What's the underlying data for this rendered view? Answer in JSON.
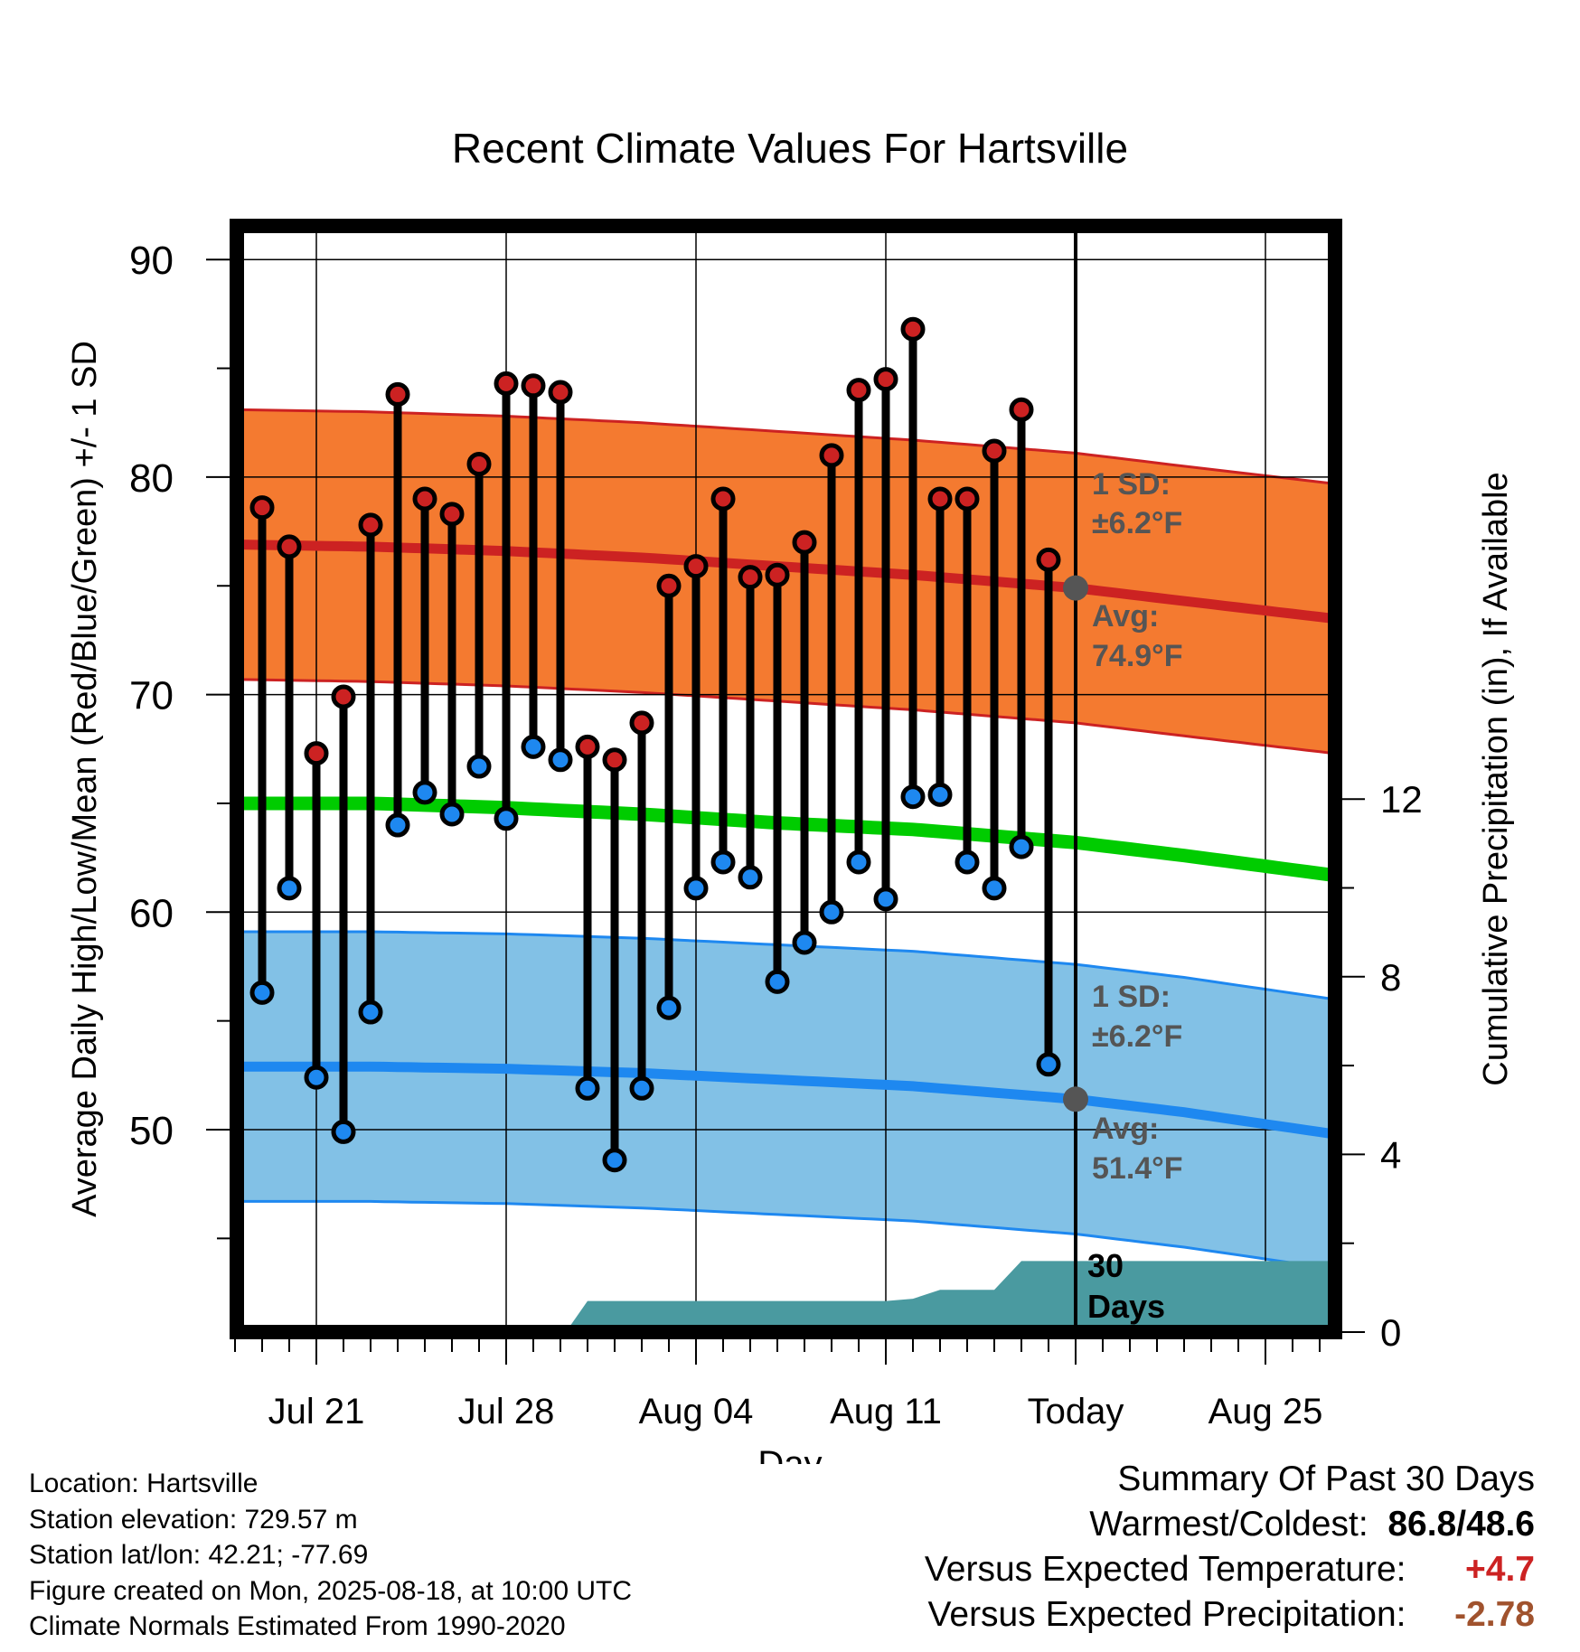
{
  "chart_data": {
    "type": "line",
    "title": "Recent Climate Values For Hartsville",
    "xlabel": "Day",
    "ylabel": "Average Daily High/Low/Mean (Red/Blue/Green) +/- 1 SD",
    "y2label": "Cumulative Precipitation (in), If Available",
    "ylim": [
      40,
      92
    ],
    "y2lim": [
      0,
      24
    ],
    "y_ticks": [
      50,
      60,
      70,
      80,
      90
    ],
    "y2_ticks": [
      0,
      4,
      8,
      12
    ],
    "x_tick_labels": [
      "Jul 21",
      "Jul 28",
      "Aug 04",
      "Aug 11",
      "Today",
      "Aug 25"
    ],
    "x_tick_days": [
      3,
      10,
      17,
      24,
      31,
      38
    ],
    "x_range_days": [
      0,
      40.5
    ],
    "grid": true,
    "colors": {
      "high": "#cc2222",
      "high_band": "#f47a30",
      "low": "#1e88f0",
      "low_band": "#82c1e6",
      "mean": "#00cc00",
      "precip": "#4a9aa0",
      "today_marker": "#555555",
      "annotation": "#555555"
    },
    "normals": {
      "days": [
        0,
        5,
        10,
        15,
        20,
        25,
        31,
        35,
        40.5
      ],
      "avg_high": [
        76.9,
        76.8,
        76.6,
        76.3,
        75.9,
        75.5,
        74.9,
        74.3,
        73.5
      ],
      "avg_low": [
        52.9,
        52.9,
        52.8,
        52.6,
        52.3,
        52.0,
        51.4,
        50.8,
        49.8
      ],
      "avg_mean": [
        65.0,
        65.0,
        64.8,
        64.5,
        64.1,
        63.8,
        63.2,
        62.6,
        61.7
      ],
      "high_sd": 6.2,
      "low_sd": 6.2
    },
    "series": [
      {
        "name": "High",
        "days": [
          1,
          2,
          3,
          4,
          5,
          6,
          7,
          8,
          9,
          10,
          11,
          12,
          13,
          14,
          15,
          16,
          17,
          18,
          19,
          20,
          21,
          22,
          23,
          24,
          25,
          26,
          27,
          28,
          29,
          30
        ],
        "values": [
          78.6,
          76.8,
          67.3,
          69.9,
          77.8,
          83.8,
          79.0,
          78.3,
          80.6,
          84.3,
          84.2,
          83.9,
          67.6,
          67.0,
          68.7,
          75.0,
          75.9,
          79.0,
          75.4,
          75.5,
          77.0,
          81.0,
          84.0,
          84.5,
          86.8,
          79.0,
          79.0,
          81.2,
          83.1,
          76.2
        ]
      },
      {
        "name": "Low",
        "days": [
          1,
          2,
          3,
          4,
          5,
          6,
          7,
          8,
          9,
          10,
          11,
          12,
          13,
          14,
          15,
          16,
          17,
          18,
          19,
          20,
          21,
          22,
          23,
          24,
          25,
          26,
          27,
          28,
          29,
          30
        ],
        "values": [
          56.3,
          61.1,
          52.4,
          49.9,
          55.4,
          64.0,
          65.5,
          64.5,
          66.7,
          64.3,
          67.6,
          67.0,
          51.9,
          48.6,
          51.9,
          55.6,
          61.1,
          62.3,
          61.6,
          56.8,
          58.6,
          60.0,
          62.3,
          60.6,
          65.3,
          65.4,
          62.3,
          61.1,
          63.0,
          53.0
        ]
      },
      {
        "name": "Cumulative Precipitation",
        "days": [
          12.2,
          13,
          19,
          20,
          23,
          24,
          25,
          26,
          28,
          29,
          30,
          35,
          40.5
        ],
        "values": [
          0,
          0.7,
          0.7,
          0.7,
          0.7,
          0.7,
          0.75,
          0.95,
          0.95,
          1.6,
          1.6,
          1.6,
          1.6
        ]
      }
    ],
    "annotations": {
      "high_sd_label": "1 SD:",
      "high_sd_value": "±6.2°F",
      "high_avg_label": "Avg:",
      "high_avg_value": "74.9°F",
      "high_avg": 74.9,
      "low_sd_label": "1 SD:",
      "low_sd_value": "±6.2°F",
      "low_avg_label": "Avg:",
      "low_avg_value": "51.4°F",
      "low_avg": 51.4,
      "today_day": 31,
      "precip_label_1": "30",
      "precip_label_2": "Days"
    }
  },
  "info": {
    "location": "Location: Hartsville",
    "elevation": "Station elevation: 729.57 m",
    "latlon": "Station lat/lon: 42.21; -77.69",
    "created": "Figure created on Mon, 2025-08-18, at 10:00 UTC",
    "normals": "Climate Normals Estimated From 1990-2020"
  },
  "summary": {
    "title": "Summary Of Past 30 Days",
    "warmest_label": "Warmest/Coldest:",
    "warmest_value": "86.8/48.6",
    "temp_label": "Versus Expected Temperature:",
    "temp_value": "+4.7",
    "precip_label": "Versus Expected Precipitation:",
    "precip_value": "-2.78"
  }
}
